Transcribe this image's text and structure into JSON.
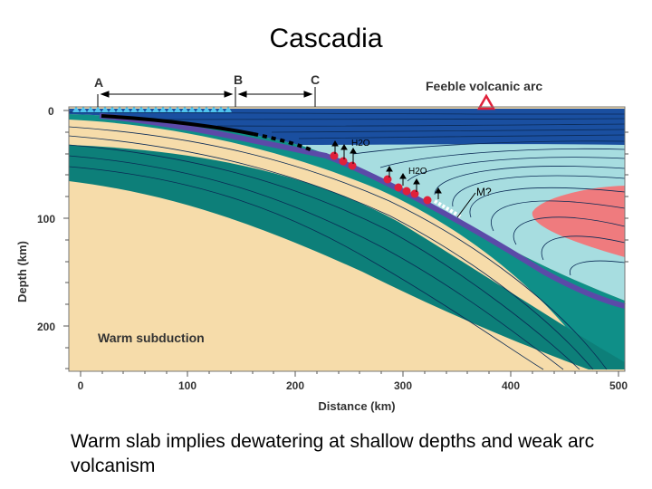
{
  "title": "Cascadia",
  "caption": "Warm slab implies dewatering at shallow depths and weak arc volcanism",
  "diagram": {
    "arc_label": "Feeble volcanic arc",
    "panel_label": "Warm subduction",
    "points": [
      "A",
      "B",
      "C"
    ],
    "fluid_labels": [
      "H2O",
      "H2O"
    ],
    "melt_label": "M?",
    "x_axis": {
      "label": "Distance (km)",
      "ticks": [
        "0",
        "100",
        "200",
        "300",
        "400",
        "500"
      ]
    },
    "y_axis": {
      "label": "Depth (km)",
      "ticks": [
        "0",
        "100",
        "200"
      ]
    },
    "colors": {
      "ocean": "#1a4fa0",
      "mantle_wedge": "#a7dde0",
      "slab": "#0f8f88",
      "slab_surface": "#5b4aa8",
      "deep_mantle": "#f6dcaa",
      "hot_core": "#ef7b7e",
      "dewatering": "#e0203a"
    }
  }
}
